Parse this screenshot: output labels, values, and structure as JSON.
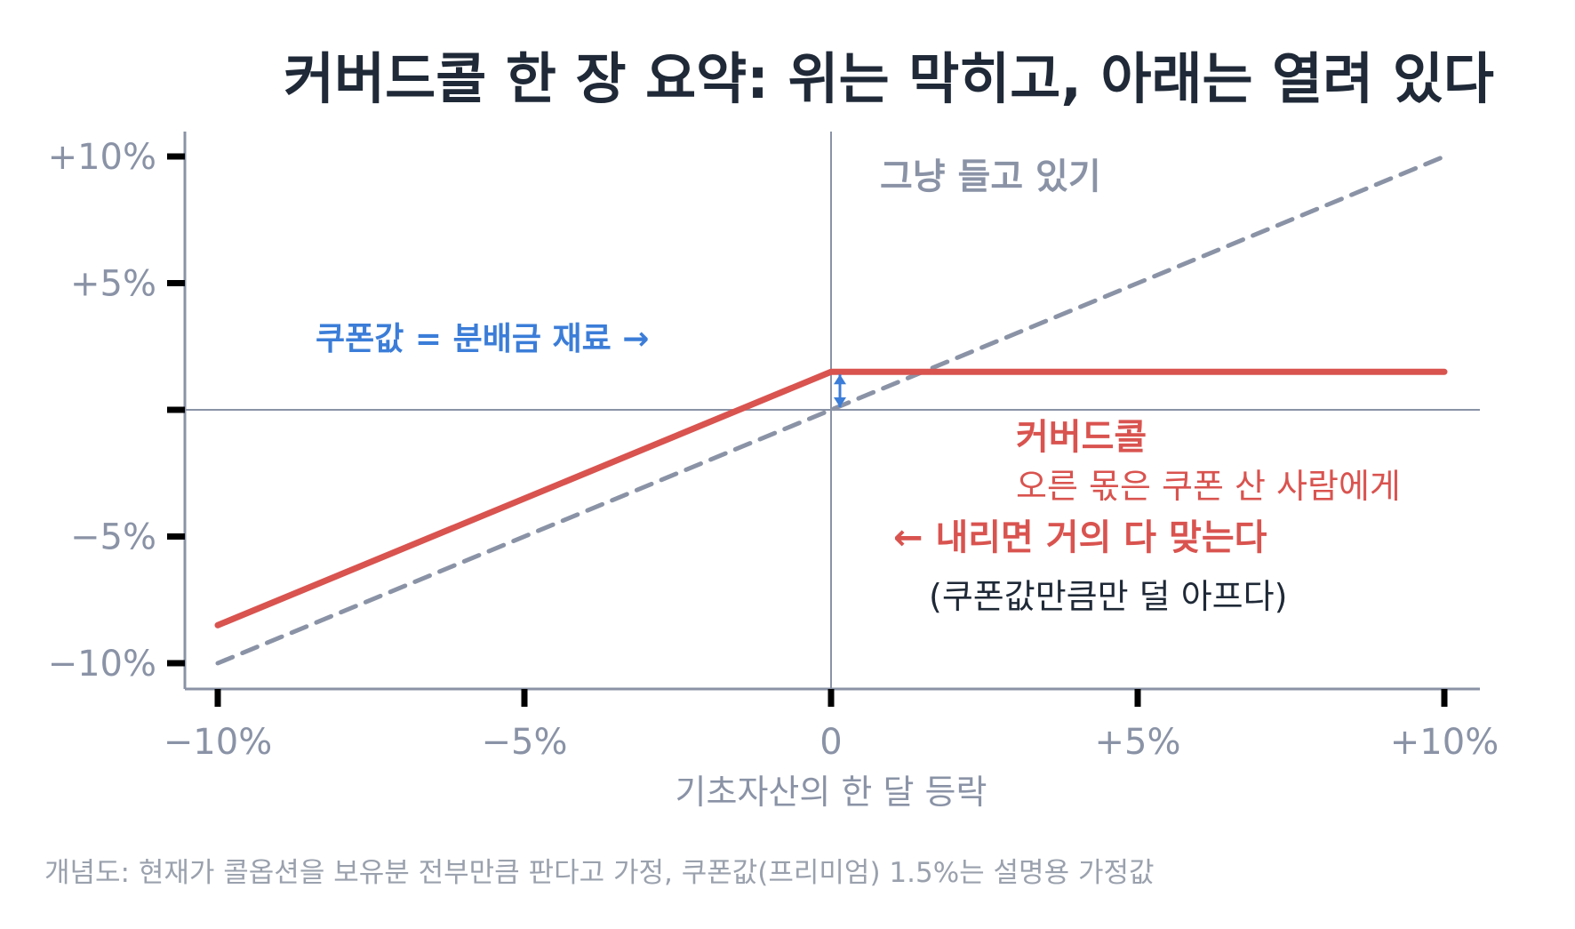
{
  "chart_data": {
    "type": "line",
    "title": "커버드콜 한 장 요약: 위는 막히고, 아래는 열려 있다",
    "xlabel": "기초자산의 한 달 등락",
    "ylabel": "",
    "xlim": [
      -10.5,
      10.5
    ],
    "ylim": [
      -11,
      11
    ],
    "x_ticks": [
      {
        "value": -10,
        "label": "−10%"
      },
      {
        "value": -5,
        "label": "−5%"
      },
      {
        "value": 0,
        "label": "0"
      },
      {
        "value": 5,
        "label": "+5%"
      },
      {
        "value": 10,
        "label": "+10%"
      }
    ],
    "y_ticks": [
      {
        "value": 10,
        "label": "+10%"
      },
      {
        "value": 5,
        "label": "+5%"
      },
      {
        "value": 0,
        "label": ""
      },
      {
        "value": -5,
        "label": "−5%"
      },
      {
        "value": -10,
        "label": "−10%"
      }
    ],
    "series": [
      {
        "name": "",
        "style": "dashed",
        "color": "#8a93a6",
        "x": [
          -10,
          10
        ],
        "y": [
          -10,
          10
        ]
      },
      {
        "name": "",
        "style": "solid",
        "color": "#d9534f",
        "x": [
          -10,
          0,
          10
        ],
        "y": [
          -8.5,
          1.5,
          1.5
        ]
      }
    ],
    "annotations": {
      "hold_label": "그냥 들고 있기",
      "coupon_label": "쿠폰값 = 분배금 재료 →",
      "covered_call_title": "커버드콜",
      "covered_call_sub": "오른 몫은 쿠폰 산 사람에게",
      "down_label": "← 내리면 거의 다 맞는다",
      "down_sub": "(쿠폰값만큼만 덜 아프다)"
    },
    "footnote": "개념도: 현재가 콜옵션을 보유분 전부만큼 판다고 가정, 쿠폰값(프리미엄) 1.5%는 설명용 가정값",
    "grid": false,
    "colors": {
      "axis": "#8a93a6",
      "covered_call": "#d9534f",
      "hold": "#8a93a6",
      "coupon": "#3b7dd8"
    }
  }
}
